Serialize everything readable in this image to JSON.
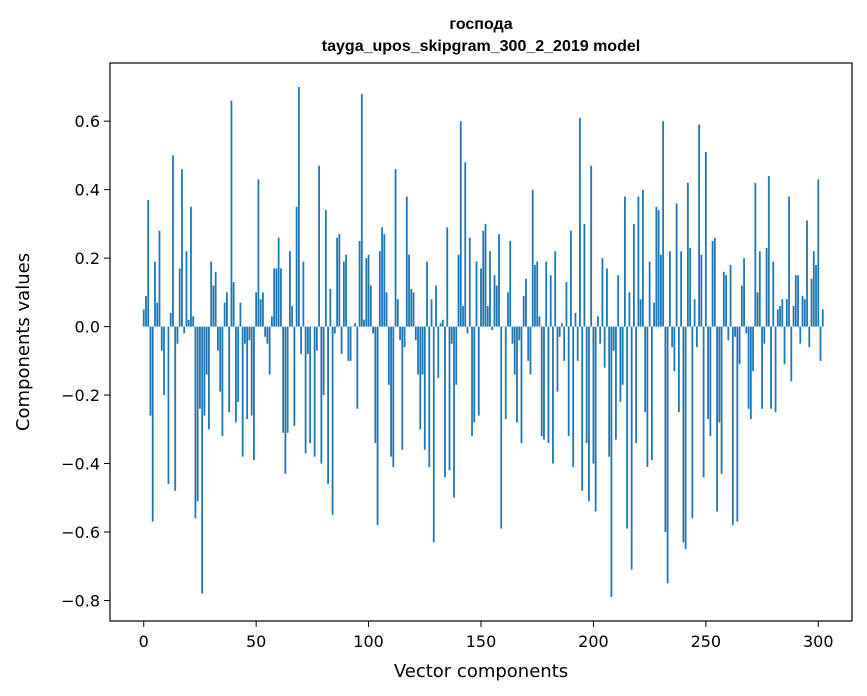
{
  "chart_data": {
    "type": "bar",
    "title_line1": "господа",
    "title_line2": "tayga_upos_skipgram_300_2_2019 model",
    "xlabel": "Vector components",
    "ylabel": "Components values",
    "xlim": [
      -15,
      315
    ],
    "ylim": [
      -0.86,
      0.77
    ],
    "xticks": [
      0,
      50,
      100,
      150,
      200,
      250,
      300
    ],
    "xtick_labels": [
      "0",
      "50",
      "100",
      "150",
      "200",
      "250",
      "300"
    ],
    "yticks": [
      -0.8,
      -0.6,
      -0.4,
      -0.2,
      0.0,
      0.2,
      0.4,
      0.6
    ],
    "ytick_labels": [
      "−0.8",
      "−0.6",
      "−0.4",
      "−0.2",
      "0.0",
      "0.2",
      "0.4",
      "0.6"
    ],
    "bar_color": "#1f77b4",
    "grid": false,
    "legend": "none",
    "values": [
      0.05,
      0.09,
      0.37,
      -0.26,
      -0.57,
      0.19,
      0.07,
      0.28,
      -0.07,
      -0.2,
      0.0,
      -0.46,
      0.04,
      0.5,
      -0.48,
      -0.05,
      0.17,
      0.46,
      -0.02,
      0.22,
      0.02,
      0.35,
      0.03,
      -0.56,
      -0.51,
      -0.24,
      -0.78,
      -0.26,
      -0.14,
      -0.3,
      0.19,
      0.12,
      0.16,
      -0.07,
      -0.19,
      -0.32,
      0.07,
      0.1,
      -0.25,
      0.66,
      0.13,
      -0.28,
      -0.22,
      0.07,
      -0.38,
      -0.05,
      -0.27,
      -0.04,
      -0.26,
      -0.39,
      0.1,
      0.43,
      0.08,
      0.1,
      -0.03,
      -0.05,
      -0.14,
      0.03,
      0.17,
      0.17,
      0.26,
      0.17,
      -0.31,
      -0.43,
      -0.31,
      0.22,
      0.06,
      -0.29,
      0.35,
      0.7,
      -0.08,
      0.19,
      -0.37,
      -0.08,
      -0.34,
      0.0,
      -0.38,
      -0.07,
      0.47,
      -0.4,
      -0.2,
      0.34,
      -0.46,
      0.11,
      -0.55,
      -0.02,
      0.26,
      0.27,
      -0.08,
      0.19,
      0.21,
      -0.1,
      -0.1,
      0.0,
      0.01,
      -0.24,
      0.25,
      0.68,
      0.02,
      0.2,
      0.21,
      0.12,
      -0.02,
      -0.34,
      -0.58,
      0.22,
      0.29,
      0.27,
      0.1,
      -0.17,
      -0.38,
      -0.41,
      0.46,
      0.08,
      -0.04,
      -0.36,
      -0.06,
      0.38,
      0.21,
      0.11,
      0.1,
      -0.04,
      -0.14,
      -0.3,
      -0.14,
      -0.36,
      0.19,
      -0.41,
      0.08,
      -0.63,
      0.12,
      -0.15,
      0.01,
      0.02,
      -0.44,
      0.29,
      -0.42,
      -0.05,
      -0.5,
      -0.17,
      0.21,
      0.6,
      0.06,
      0.48,
      -0.02,
      0.26,
      -0.32,
      -0.28,
      0.19,
      -0.26,
      0.17,
      0.28,
      0.3,
      0.06,
      0.22,
      -0.01,
      0.15,
      0.12,
      0.27,
      -0.59,
      0.0,
      -0.27,
      0.1,
      0.25,
      -0.05,
      -0.14,
      -0.28,
      -0.04,
      -0.34,
      0.09,
      0.14,
      -0.1,
      -0.14,
      0.4,
      0.18,
      0.19,
      0.03,
      -0.32,
      -0.33,
      0.19,
      -0.34,
      0.15,
      -0.4,
      0.22,
      -0.19,
      -0.03,
      0.01,
      -0.1,
      0.13,
      -0.32,
      0.28,
      -0.41,
      0.04,
      -0.1,
      0.61,
      -0.48,
      0.3,
      -0.34,
      -0.51,
      0.47,
      -0.4,
      -0.54,
      0.03,
      -0.05,
      0.2,
      -0.12,
      0.17,
      -0.38,
      -0.79,
      -0.07,
      -0.33,
      0.15,
      -0.22,
      -0.17,
      0.38,
      -0.59,
      0.1,
      -0.71,
      0.3,
      -0.34,
      0.38,
      0.08,
      0.4,
      -0.25,
      -0.41,
      0.19,
      -0.39,
      0.07,
      0.35,
      0.34,
      0.21,
      0.6,
      -0.6,
      -0.75,
      0.22,
      -0.06,
      -0.13,
      0.36,
      -0.25,
      0.22,
      -0.63,
      -0.65,
      0.42,
      0.23,
      -0.56,
      0.08,
      -0.06,
      0.59,
      0.21,
      -0.44,
      0.51,
      -0.27,
      -0.32,
      0.25,
      0.26,
      -0.54,
      -0.28,
      -0.43,
      0.16,
      0.15,
      -0.04,
      0.18,
      -0.58,
      -0.03,
      -0.57,
      -0.11,
      0.12,
      0.2,
      -0.02,
      -0.24,
      -0.27,
      -0.13,
      0.42,
      0.1,
      0.22,
      -0.24,
      -0.05,
      0.23,
      0.44,
      -0.24,
      0.19,
      -0.25,
      0.05,
      0.06,
      0.08,
      -0.11,
      0.08,
      0.38,
      -0.16,
      0.06,
      0.15,
      0.15,
      -0.05,
      0.09,
      0.08,
      0.31,
      -0.06,
      0.14,
      0.22,
      0.18,
      0.43,
      -0.1,
      0.05
    ]
  }
}
